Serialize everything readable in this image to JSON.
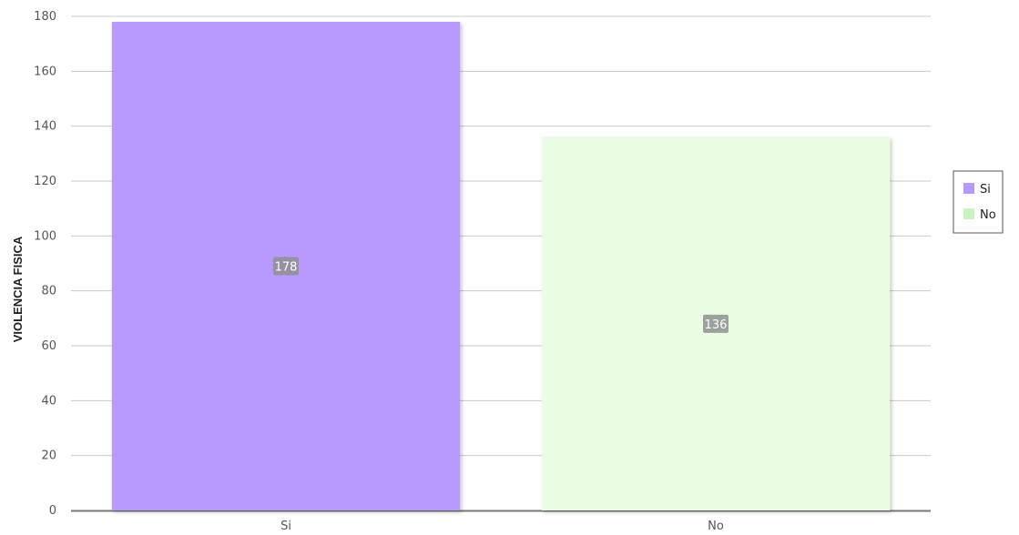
{
  "chart_data": {
    "type": "bar",
    "title": "",
    "xlabel": "",
    "ylabel": "VIOLENCIA FISICA",
    "categories": [
      "Si",
      "No"
    ],
    "values": [
      178,
      136
    ],
    "colors": [
      "#b899ff",
      "#eafce3"
    ],
    "ylim": [
      0,
      180
    ],
    "yticks": [
      0,
      20,
      40,
      60,
      80,
      100,
      120,
      140,
      160,
      180
    ],
    "grid": true,
    "legend": {
      "position": "right",
      "entries": [
        {
          "label": "Si",
          "color": "#b899ff"
        },
        {
          "label": "No",
          "color": "#c9f4c0"
        }
      ]
    },
    "data_labels": [
      "178",
      "136"
    ]
  }
}
